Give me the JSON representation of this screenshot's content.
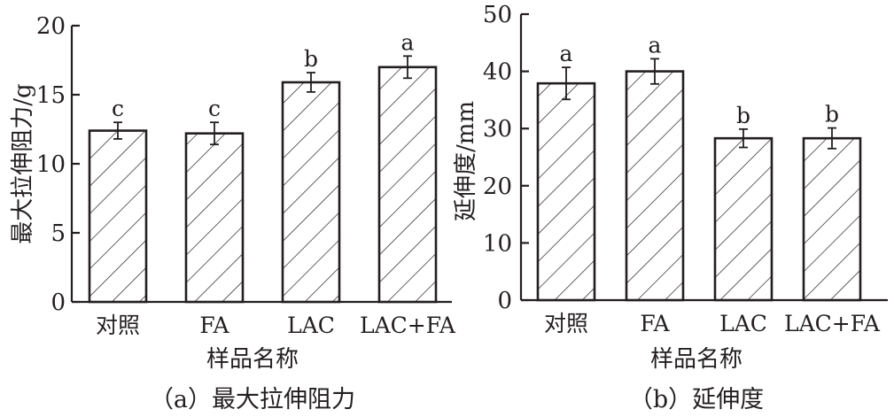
{
  "chart_data": [
    {
      "type": "bar",
      "caption": "（a）最大拉伸阻力",
      "xlabel": "样品名称",
      "ylabel": "最大拉伸阻力/g",
      "categories": [
        "对照",
        "FA",
        "LAC",
        "LAC+FA"
      ],
      "values": [
        12.4,
        12.2,
        15.9,
        17.0
      ],
      "errors": [
        0.6,
        0.8,
        0.7,
        0.8
      ],
      "significance": [
        "c",
        "c",
        "b",
        "a"
      ],
      "ylim": [
        0,
        20
      ],
      "yticks": [
        0,
        5,
        10,
        15,
        20
      ],
      "ytick_labels": [
        "0",
        "5",
        "10",
        "15",
        "20"
      ],
      "fill": "diagonal-hatch",
      "grid": false
    },
    {
      "type": "bar",
      "caption": "（b）延伸度",
      "xlabel": "样品名称",
      "ylabel": "延伸度/mm",
      "categories": [
        "对照",
        "FA",
        "LAC",
        "LAC+FA"
      ],
      "values": [
        37.9,
        40.0,
        28.3,
        28.3
      ],
      "errors": [
        2.8,
        2.2,
        1.6,
        1.8
      ],
      "significance": [
        "a",
        "a",
        "b",
        "b"
      ],
      "ylim": [
        0,
        50
      ],
      "yticks": [
        0,
        10,
        20,
        30,
        40,
        50
      ],
      "ytick_labels": [
        "0",
        "10",
        "20",
        "30",
        "40",
        "50"
      ],
      "fill": "diagonal-hatch",
      "grid": false
    }
  ],
  "colors": {
    "ink": "#231f20",
    "background": "#ffffff"
  }
}
